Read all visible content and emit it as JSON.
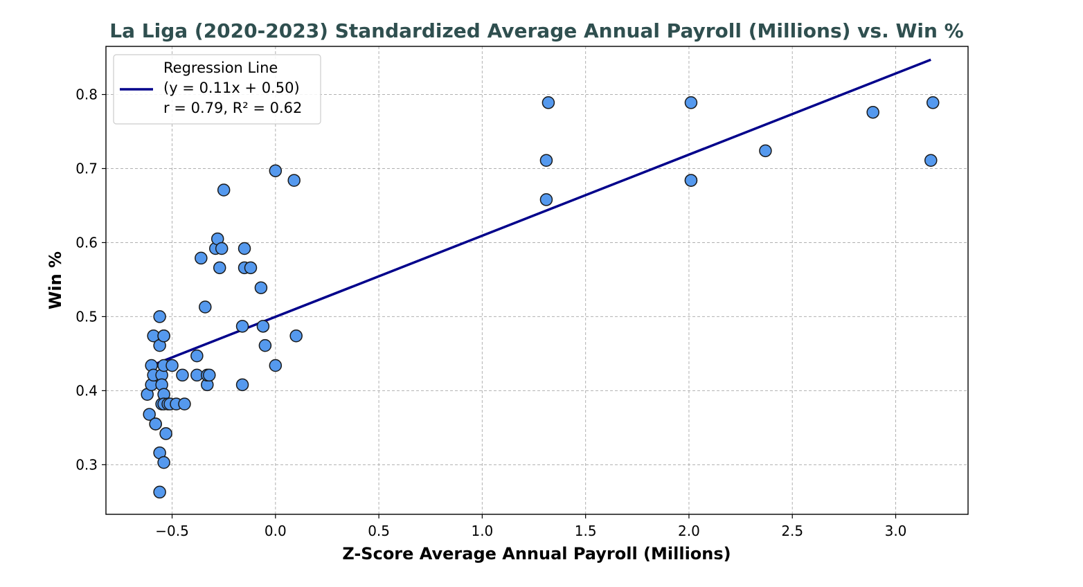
{
  "chart_data": {
    "type": "scatter",
    "title": "La Liga (2020-2023) Standardized Average Annual Payroll (Millions) vs. Win %",
    "xlabel": "Z-Score Average Annual Payroll (Millions)",
    "ylabel": "Win %",
    "xlim": [
      -0.82,
      3.35
    ],
    "ylim": [
      0.233,
      0.865
    ],
    "xticks": [
      -0.5,
      0.0,
      0.5,
      1.0,
      1.5,
      2.0,
      2.5,
      3.0
    ],
    "xtick_labels": [
      "−0.5",
      "0.0",
      "0.5",
      "1.0",
      "1.5",
      "2.0",
      "2.5",
      "3.0"
    ],
    "yticks": [
      0.3,
      0.4,
      0.5,
      0.6,
      0.7,
      0.8
    ],
    "ytick_labels": [
      "0.3",
      "0.4",
      "0.5",
      "0.6",
      "0.7",
      "0.8"
    ],
    "grid": true,
    "legend_position": "top-left",
    "colors": {
      "points": "#5599ee",
      "point_edge": "#1a1a1a",
      "regression": "#00008b",
      "title": "#2f4f4f"
    },
    "series": [
      {
        "kind": "points",
        "x": [
          -0.62,
          -0.61,
          -0.6,
          -0.6,
          -0.59,
          -0.59,
          -0.58,
          -0.58,
          -0.56,
          -0.56,
          -0.56,
          -0.56,
          -0.55,
          -0.55,
          -0.55,
          -0.54,
          -0.54,
          -0.54,
          -0.54,
          -0.54,
          -0.54,
          -0.53,
          -0.52,
          -0.51,
          -0.5,
          -0.48,
          -0.45,
          -0.44,
          -0.38,
          -0.38,
          -0.36,
          -0.34,
          -0.33,
          -0.33,
          -0.32,
          -0.29,
          -0.28,
          -0.27,
          -0.26,
          -0.25,
          -0.16,
          -0.16,
          -0.15,
          -0.15,
          -0.12,
          -0.07,
          -0.06,
          -0.05,
          0.0,
          0.0,
          0.09,
          0.1,
          1.31,
          1.31,
          1.32,
          2.01,
          2.01,
          2.01,
          2.37,
          2.89,
          3.17,
          3.18
        ],
        "y": [
          0.395,
          0.368,
          0.434,
          0.408,
          0.474,
          0.421,
          0.355,
          0.355,
          0.5,
          0.461,
          0.316,
          0.263,
          0.421,
          0.408,
          0.382,
          0.474,
          0.474,
          0.434,
          0.395,
          0.382,
          0.303,
          0.342,
          0.382,
          0.382,
          0.434,
          0.382,
          0.421,
          0.382,
          0.447,
          0.421,
          0.579,
          0.513,
          0.408,
          0.421,
          0.421,
          0.592,
          0.605,
          0.566,
          0.592,
          0.671,
          0.487,
          0.408,
          0.566,
          0.592,
          0.566,
          0.539,
          0.487,
          0.461,
          0.697,
          0.434,
          0.684,
          0.474,
          0.711,
          0.658,
          0.789,
          0.789,
          0.684,
          0.684,
          0.724,
          0.776,
          0.711,
          0.789
        ]
      },
      {
        "kind": "line",
        "name": "Regression Line",
        "x": [
          -0.6,
          3.17
        ],
        "y": [
          0.434,
          0.847
        ]
      }
    ],
    "legend": {
      "line1": "Regression Line",
      "line2": "(y = 0.11x + 0.50)",
      "line3": "r = 0.79, R² = 0.62"
    }
  }
}
